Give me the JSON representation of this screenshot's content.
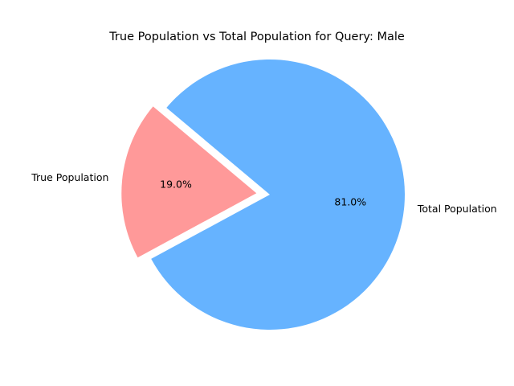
{
  "chart_data": {
    "type": "pie",
    "title": "True Population vs Total Population for Query: Male",
    "slices": [
      {
        "label": "True Population",
        "value": 19.0,
        "percent_label": "19.0%",
        "color": "#ff9999",
        "exploded": true
      },
      {
        "label": "Total Population",
        "value": 81.0,
        "percent_label": "81.0%",
        "color": "#66b3ff",
        "exploded": false
      }
    ],
    "start_angle_deg": 140,
    "direction": "counterclockwise",
    "legend": "none"
  }
}
